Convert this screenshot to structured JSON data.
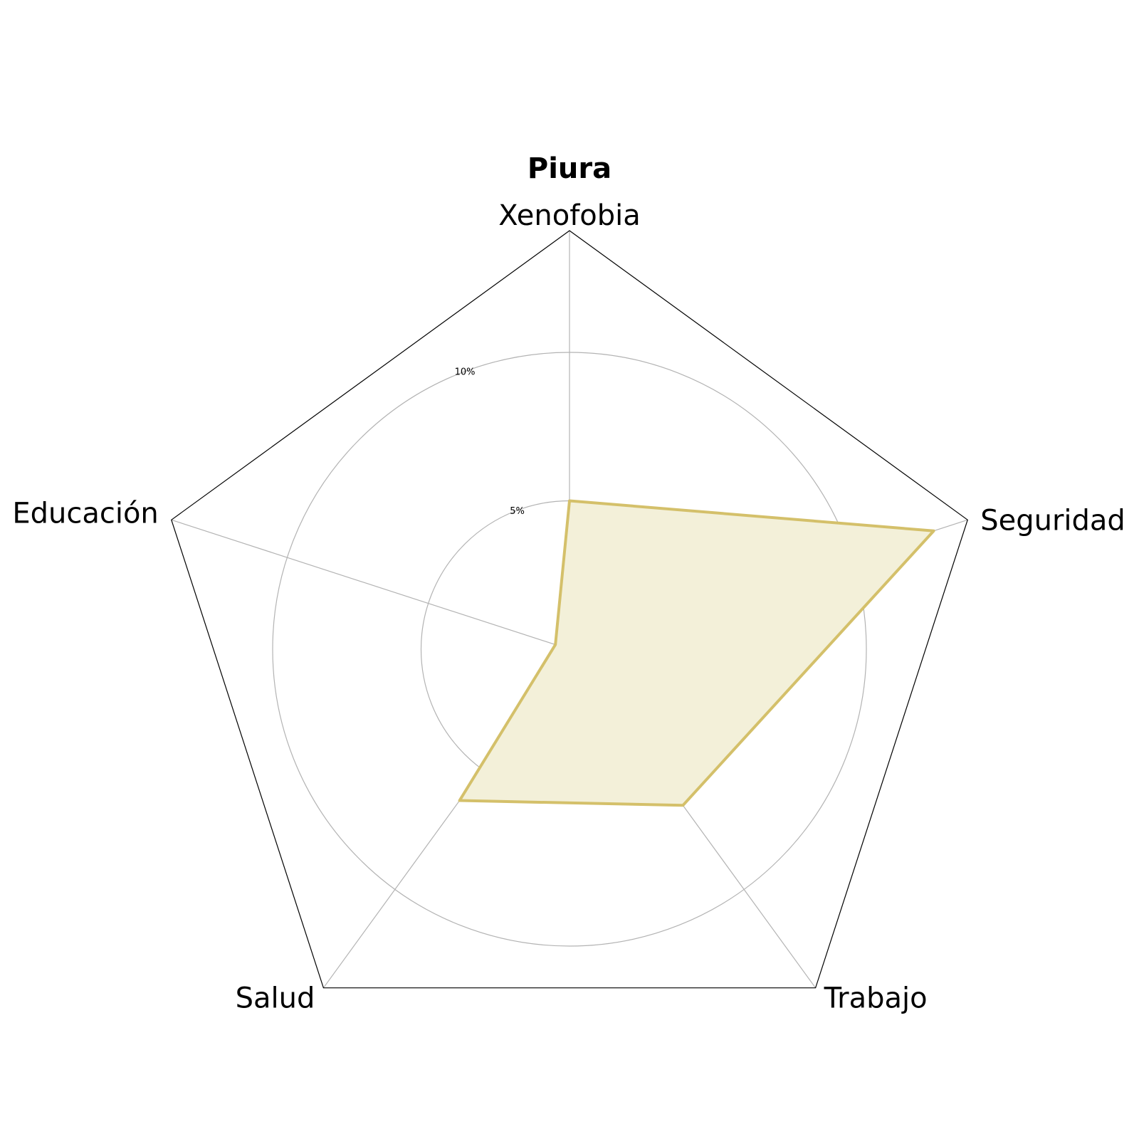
{
  "chart_data": {
    "type": "radar",
    "title": "Piura",
    "categories": [
      "Xenofobia",
      "Seguridad",
      "Trabajo",
      "Salud",
      "Educación"
    ],
    "series": [
      {
        "values": [
          5.0,
          12.9,
          6.5,
          6.3,
          0.5
        ]
      }
    ],
    "rlim": [
      0,
      14.1
    ],
    "rticks": [
      5,
      10
    ],
    "rtick_labels": [
      "5%",
      "10%"
    ],
    "grid": true,
    "colors": {
      "series_line": "#d4c06a",
      "series_fill": "#f3f0d9",
      "grid": "#b3b3b3",
      "frame": "#000000"
    }
  }
}
